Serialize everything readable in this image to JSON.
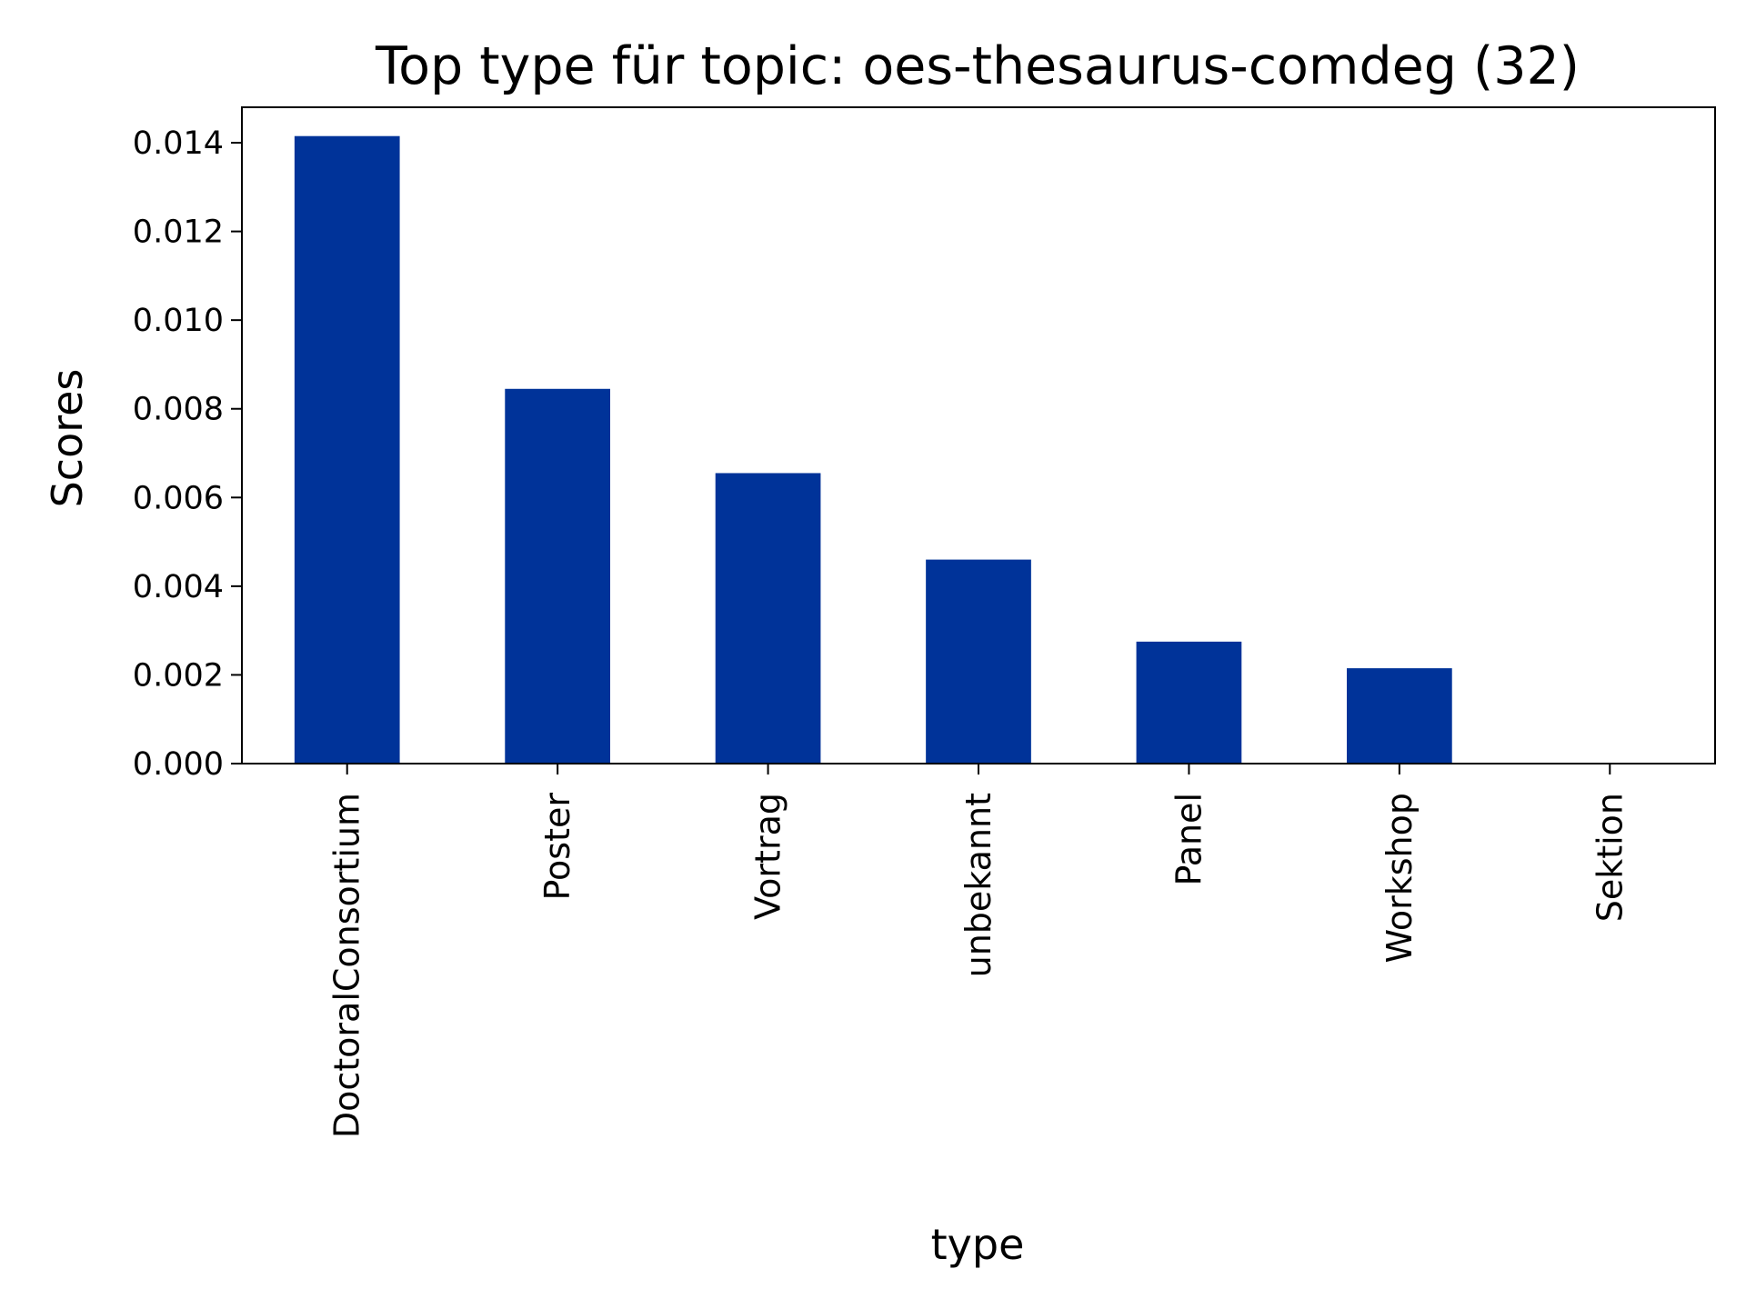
{
  "chart_data": {
    "type": "bar",
    "title": "Top type für topic: oes-thesaurus-comdeg (32)",
    "xlabel": "type",
    "ylabel": "Scores",
    "categories": [
      "DoctoralConsortium",
      "Poster",
      "Vortrag",
      "unbekannt",
      "Panel",
      "Workshop",
      "Sektion"
    ],
    "values": [
      0.01415,
      0.00845,
      0.00655,
      0.0046,
      0.00275,
      0.00215,
      0.0
    ],
    "ylim": [
      0,
      0.0148
    ],
    "yticks": [
      0.0,
      0.002,
      0.004,
      0.006,
      0.008,
      0.01,
      0.012,
      0.014
    ],
    "ytick_labels": [
      "0.000",
      "0.002",
      "0.004",
      "0.006",
      "0.008",
      "0.010",
      "0.012",
      "0.014"
    ],
    "bar_color": "#003399",
    "grid": false,
    "legend": "none"
  }
}
